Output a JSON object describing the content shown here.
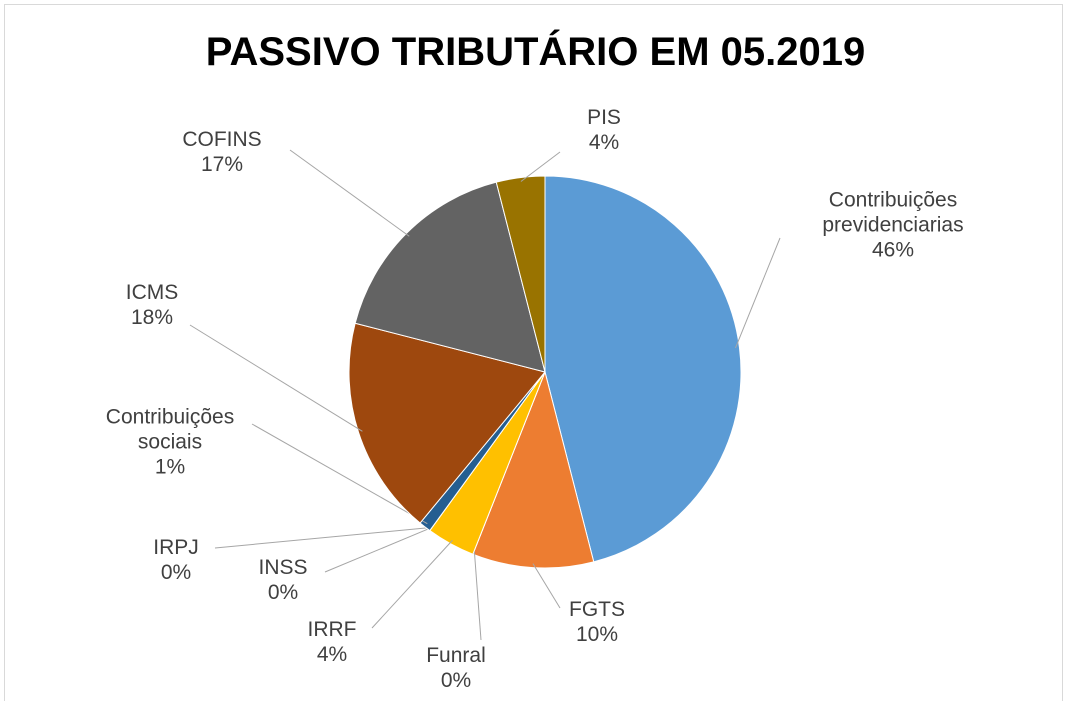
{
  "chart_data": {
    "type": "pie",
    "title": "PASSIVO TRIBUTÁRIO EM 05.2019",
    "categories": [
      "Contribuições previdenciarias",
      "FGTS",
      "Funral",
      "IRRF",
      "INSS",
      "IRPJ",
      "Contribuições sociais",
      "ICMS",
      "COFINS",
      "PIS"
    ],
    "values": [
      46,
      10,
      0,
      4,
      0,
      0,
      1,
      18,
      17,
      4
    ],
    "value_labels": [
      "46%",
      "10%",
      "0%",
      "4%",
      "0%",
      "0%",
      "1%",
      "18%",
      "17%",
      "4%"
    ],
    "colors": [
      "#5b9bd5",
      "#ed7d31",
      "#a5a5a5",
      "#ffc000",
      "#4472c4",
      "#70ad47",
      "#255e91",
      "#9e480e",
      "#636363",
      "#997300"
    ]
  }
}
